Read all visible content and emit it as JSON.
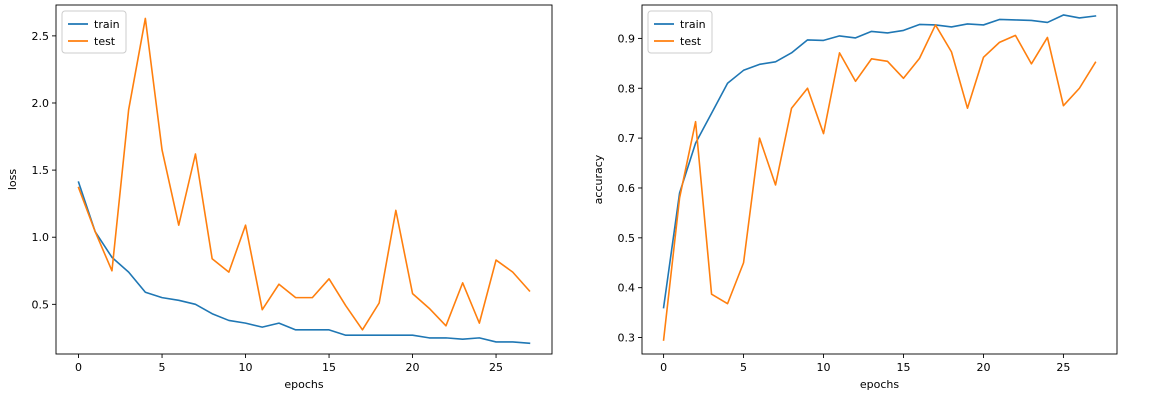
{
  "chart_data": [
    {
      "type": "line",
      "xlabel": "epochs",
      "ylabel": "loss",
      "xlim": [
        -1.35,
        28.35
      ],
      "ylim": [
        0.13,
        2.73
      ],
      "xticks": [
        0,
        5,
        10,
        15,
        20,
        25
      ],
      "yticks": [
        0.5,
        1.0,
        1.5,
        2.0,
        2.5
      ],
      "grid": false,
      "legend_position": "top-left",
      "x": [
        0,
        1,
        2,
        3,
        4,
        5,
        6,
        7,
        8,
        9,
        10,
        11,
        12,
        13,
        14,
        15,
        16,
        17,
        18,
        19,
        20,
        21,
        22,
        23,
        24,
        25,
        26,
        27
      ],
      "series": [
        {
          "name": "train",
          "color": "#1f77b4",
          "values": [
            1.41,
            1.04,
            0.85,
            0.74,
            0.59,
            0.55,
            0.53,
            0.5,
            0.43,
            0.38,
            0.36,
            0.33,
            0.36,
            0.31,
            0.31,
            0.31,
            0.27,
            0.27,
            0.27,
            0.27,
            0.27,
            0.25,
            0.25,
            0.24,
            0.25,
            0.22,
            0.22,
            0.21
          ]
        },
        {
          "name": "test",
          "color": "#ff7f0e",
          "values": [
            1.37,
            1.04,
            0.75,
            1.95,
            2.63,
            1.65,
            1.09,
            1.62,
            0.84,
            0.74,
            1.09,
            0.46,
            0.65,
            0.55,
            0.55,
            0.69,
            0.49,
            0.31,
            0.51,
            1.2,
            0.58,
            0.47,
            0.34,
            0.66,
            0.36,
            0.83,
            0.74,
            0.6
          ]
        }
      ]
    },
    {
      "type": "line",
      "xlabel": "epochs",
      "ylabel": "accuracy",
      "xlim": [
        -1.35,
        28.35
      ],
      "ylim": [
        0.267,
        0.967
      ],
      "xticks": [
        0,
        5,
        10,
        15,
        20,
        25
      ],
      "yticks": [
        0.3,
        0.4,
        0.5,
        0.6,
        0.7,
        0.8,
        0.9
      ],
      "grid": false,
      "legend_position": "top-left",
      "x": [
        0,
        1,
        2,
        3,
        4,
        5,
        6,
        7,
        8,
        9,
        10,
        11,
        12,
        13,
        14,
        15,
        16,
        17,
        18,
        19,
        20,
        21,
        22,
        23,
        24,
        25,
        26,
        27
      ],
      "series": [
        {
          "name": "train",
          "color": "#1f77b4",
          "values": [
            0.36,
            0.59,
            0.69,
            0.75,
            0.81,
            0.836,
            0.848,
            0.853,
            0.871,
            0.897,
            0.896,
            0.905,
            0.901,
            0.914,
            0.911,
            0.916,
            0.928,
            0.927,
            0.923,
            0.929,
            0.927,
            0.938,
            0.937,
            0.936,
            0.932,
            0.947,
            0.941,
            0.945
          ]
        },
        {
          "name": "test",
          "color": "#ff7f0e",
          "values": [
            0.295,
            0.58,
            0.733,
            0.387,
            0.368,
            0.45,
            0.7,
            0.606,
            0.76,
            0.8,
            0.709,
            0.871,
            0.814,
            0.859,
            0.854,
            0.82,
            0.86,
            0.927,
            0.873,
            0.76,
            0.862,
            0.892,
            0.906,
            0.849,
            0.902,
            0.765,
            0.8,
            0.852
          ]
        }
      ]
    }
  ]
}
